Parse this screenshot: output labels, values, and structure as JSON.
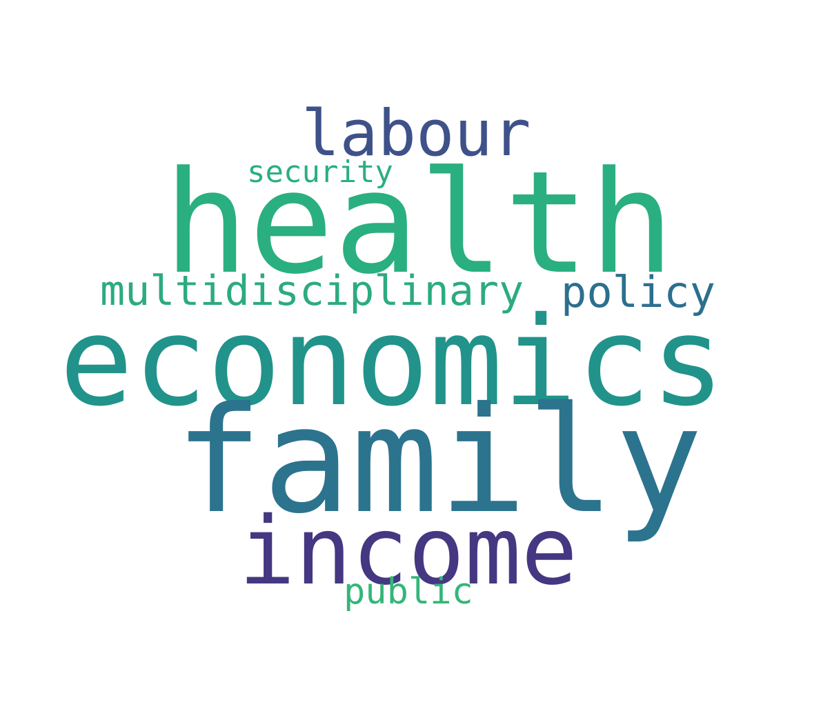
{
  "word_cloud": {
    "words": [
      {
        "text": "labour",
        "color": "#3e5189"
      },
      {
        "text": "health",
        "color": "#2aaf80"
      },
      {
        "text": "security",
        "color": "#2aaf80"
      },
      {
        "text": "multidisciplinary",
        "color": "#2cab7f"
      },
      {
        "text": "policy",
        "color": "#2c6f8e"
      },
      {
        "text": "economics",
        "color": "#21938b"
      },
      {
        "text": "family",
        "color": "#2c738e"
      },
      {
        "text": "income",
        "color": "#453781"
      },
      {
        "text": "public",
        "color": "#34b679"
      }
    ]
  }
}
